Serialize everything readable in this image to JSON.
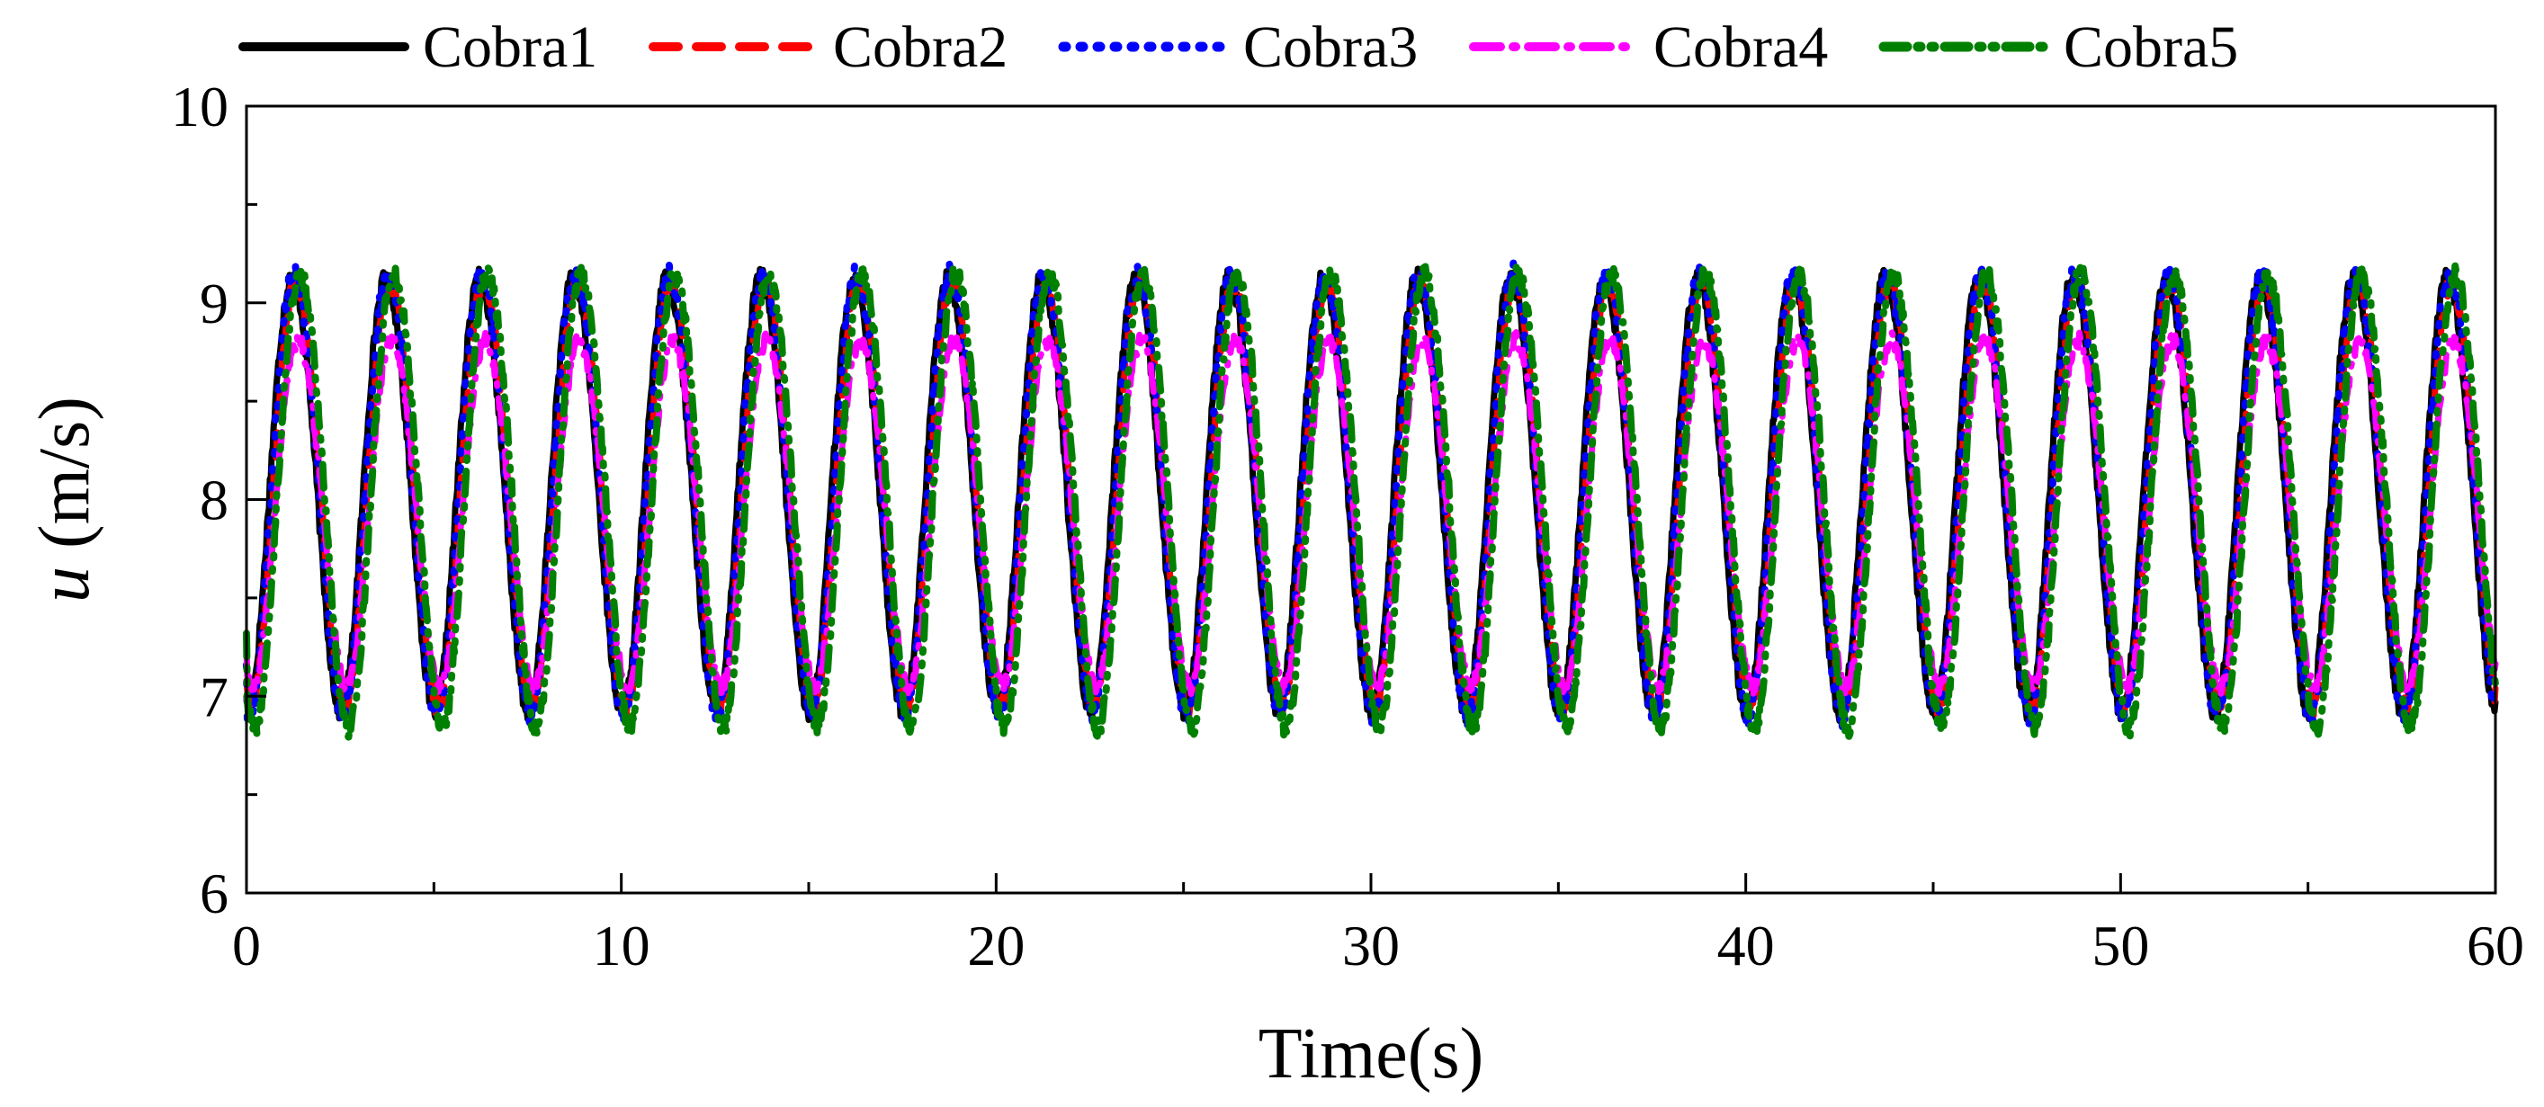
{
  "chart_data": {
    "type": "line",
    "title": "",
    "xlabel": "Time(s)",
    "ylabel_var": "u",
    "ylabel_unit": " (m/s)",
    "xlim": [
      0,
      60
    ],
    "ylim": [
      6,
      10
    ],
    "x_ticks": [
      0,
      10,
      20,
      30,
      40,
      50,
      60
    ],
    "y_ticks": [
      6,
      7,
      8,
      9,
      10
    ],
    "x_tick_labels": [
      "0",
      "10",
      "20",
      "30",
      "40",
      "50",
      "60"
    ],
    "y_tick_labels": [
      "6",
      "7",
      "8",
      "9",
      "10"
    ],
    "grid": false,
    "legend_position": "top",
    "signal": {
      "mean": 8.05,
      "amplitude": 1.05,
      "period_s": 2.5,
      "peak_range": [
        9.15,
        9.28
      ],
      "trough_range": [
        6.8,
        7.0
      ]
    },
    "series": [
      {
        "name": "Cobra1",
        "color": "#000000",
        "style": "solid",
        "mean": 8.05,
        "amplitude": 1.1,
        "phase": 0.0,
        "noise": 0.05
      },
      {
        "name": "Cobra2",
        "color": "#ff0000",
        "style": "dash",
        "mean": 8.05,
        "amplitude": 1.08,
        "phase": 0.04,
        "noise": 0.05
      },
      {
        "name": "Cobra3",
        "color": "#0000ff",
        "style": "dot",
        "mean": 8.05,
        "amplitude": 1.12,
        "phase": 0.02,
        "noise": 0.06
      },
      {
        "name": "Cobra4",
        "color": "#ff00ff",
        "style": "dashdot",
        "mean": 7.95,
        "amplitude": 0.88,
        "phase": 0.06,
        "noise": 0.04
      },
      {
        "name": "Cobra5",
        "color": "#008000",
        "style": "dashdotdot",
        "mean": 8.02,
        "amplitude": 1.15,
        "phase": 0.08,
        "noise": 0.05
      }
    ]
  }
}
